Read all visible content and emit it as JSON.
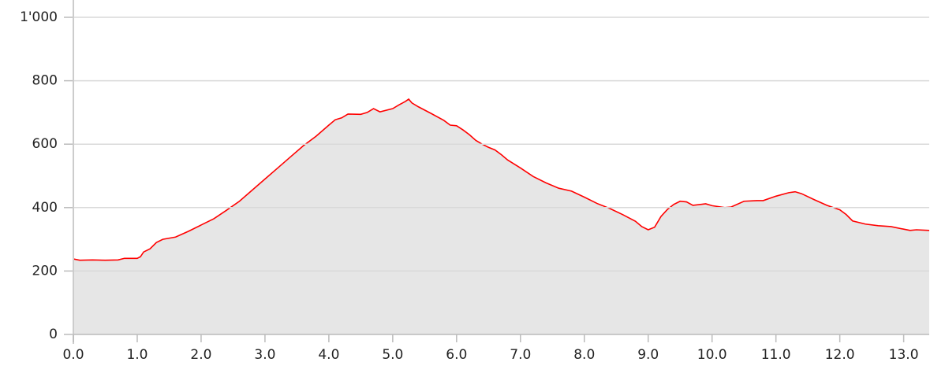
{
  "chart_data": {
    "type": "area",
    "x": [
      0.0,
      0.1,
      0.3,
      0.5,
      0.7,
      0.8,
      1.0,
      1.05,
      1.1,
      1.2,
      1.3,
      1.4,
      1.6,
      1.8,
      2.0,
      2.2,
      2.4,
      2.6,
      2.8,
      3.0,
      3.2,
      3.4,
      3.6,
      3.8,
      4.0,
      4.1,
      4.2,
      4.3,
      4.5,
      4.6,
      4.7,
      4.8,
      5.0,
      5.1,
      5.2,
      5.25,
      5.3,
      5.4,
      5.6,
      5.8,
      5.9,
      6.0,
      6.1,
      6.2,
      6.3,
      6.4,
      6.5,
      6.6,
      6.7,
      6.8,
      7.0,
      7.2,
      7.4,
      7.6,
      7.8,
      8.0,
      8.2,
      8.4,
      8.6,
      8.8,
      8.9,
      9.0,
      9.1,
      9.2,
      9.3,
      9.4,
      9.5,
      9.6,
      9.7,
      9.9,
      10.0,
      10.2,
      10.3,
      10.5,
      10.7,
      10.8,
      11.0,
      11.2,
      11.3,
      11.4,
      11.6,
      11.8,
      12.0,
      12.1,
      12.2,
      12.4,
      12.6,
      12.8,
      13.0,
      13.1,
      13.2,
      13.4
    ],
    "series": [
      {
        "color": "#ff0000",
        "fill": "#e6e6e6",
        "values": [
          238,
          234,
          235,
          234,
          235,
          240,
          240,
          245,
          260,
          270,
          290,
          300,
          307,
          325,
          345,
          365,
          392,
          420,
          455,
          490,
          525,
          560,
          595,
          625,
          660,
          677,
          683,
          695,
          694,
          700,
          712,
          702,
          712,
          724,
          735,
          742,
          730,
          718,
          697,
          675,
          660,
          658,
          645,
          630,
          612,
          600,
          590,
          582,
          567,
          550,
          525,
          498,
          478,
          461,
          452,
          433,
          413,
          397,
          378,
          357,
          340,
          330,
          338,
          372,
          394,
          410,
          420,
          418,
          407,
          412,
          406,
          400,
          402,
          420,
          422,
          422,
          436,
          447,
          450,
          444,
          425,
          407,
          393,
          378,
          358,
          348,
          343,
          340,
          332,
          328,
          330,
          328
        ]
      }
    ],
    "xlim": [
      0,
      13.4
    ],
    "ylim": [
      0,
      1000
    ],
    "xticks": [
      {
        "value": 0,
        "label": "0.0"
      },
      {
        "value": 1,
        "label": "1.0"
      },
      {
        "value": 2,
        "label": "2.0"
      },
      {
        "value": 3,
        "label": "3.0"
      },
      {
        "value": 4,
        "label": "4.0"
      },
      {
        "value": 5,
        "label": "5.0"
      },
      {
        "value": 6,
        "label": "6.0"
      },
      {
        "value": 7,
        "label": "7.0"
      },
      {
        "value": 8,
        "label": "8.0"
      },
      {
        "value": 9,
        "label": "9.0"
      },
      {
        "value": 10,
        "label": "10.0"
      },
      {
        "value": 11,
        "label": "11.0"
      },
      {
        "value": 12,
        "label": "12.0"
      },
      {
        "value": 13,
        "label": "13.0"
      }
    ],
    "yticks": [
      0,
      200,
      400,
      600,
      800,
      {
        "value": 1000,
        "label": "1'000"
      }
    ],
    "grid": true
  }
}
